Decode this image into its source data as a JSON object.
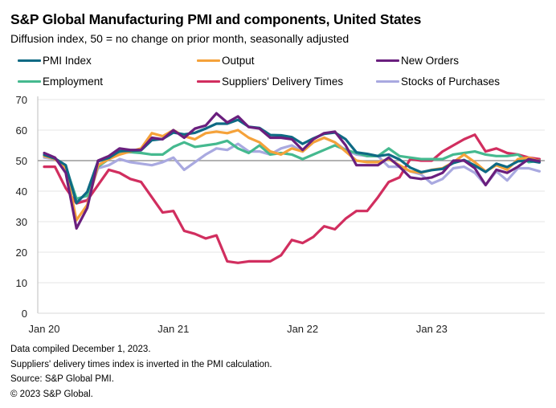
{
  "title": "S&P Global Manufacturing PMI and components, United States",
  "subtitle": "Diffusion index, 50 = no change on prior month, seasonally adjusted",
  "footer": [
    "Data compiled December 1, 2023.",
    "Suppliers' delivery times index is inverted in the PMI calculation.",
    "Source: S&P Global PMI.",
    "© 2023 S&P Global."
  ],
  "chart_data": {
    "type": "line",
    "title": "S&P Global Manufacturing PMI and components, United States",
    "subtitle": "Diffusion index, 50 = no change on prior month, seasonally adjusted",
    "xlabel": "",
    "ylabel": "",
    "ylim": [
      0,
      70
    ],
    "yticks": [
      0,
      10,
      20,
      30,
      40,
      50,
      60,
      70
    ],
    "xtick_labels": [
      {
        "label": "Jan 20",
        "index": 0
      },
      {
        "label": "Jan 21",
        "index": 12
      },
      {
        "label": "Jan 22",
        "index": 24
      },
      {
        "label": "Jan 23",
        "index": 36
      }
    ],
    "x_start": "Jan 2020",
    "x_end": "Nov 2023",
    "reference_line": 50,
    "grid": true,
    "legend_position": "top",
    "series": [
      {
        "name": "PMI Index",
        "color": "#0e6a84",
        "values": [
          51.9,
          50.7,
          48.5,
          36.1,
          39.8,
          49.8,
          50.9,
          53.1,
          53.2,
          53.4,
          56.7,
          57.1,
          59.2,
          58.6,
          59.1,
          60.5,
          62.1,
          62.1,
          63.4,
          61.1,
          60.7,
          58.4,
          58.3,
          57.7,
          55.5,
          57.3,
          58.8,
          59.2,
          57.0,
          52.7,
          52.2,
          51.5,
          52.0,
          50.4,
          47.7,
          46.2,
          46.9,
          47.3,
          49.2,
          50.2,
          48.4,
          46.3,
          49.0,
          47.9,
          49.8,
          50.0,
          49.4
        ]
      },
      {
        "name": "Output",
        "color": "#f5a23a",
        "values": [
          51.5,
          50.5,
          47.5,
          30.5,
          35.5,
          48.5,
          50.5,
          52.0,
          53.0,
          54.0,
          59.0,
          58.0,
          60.0,
          58.0,
          57.0,
          59.0,
          59.5,
          59.0,
          60.0,
          57.5,
          56.0,
          53.0,
          52.0,
          54.0,
          53.0,
          56.0,
          57.5,
          56.0,
          53.0,
          50.0,
          49.5,
          49.5,
          50.5,
          48.5,
          46.5,
          46.0,
          47.0,
          47.5,
          49.5,
          52.0,
          49.5,
          46.5,
          48.5,
          47.0,
          50.5,
          51.0,
          49.8
        ]
      },
      {
        "name": "New Orders",
        "color": "#6a1f7e",
        "values": [
          52.5,
          51.0,
          46.0,
          27.8,
          34.5,
          50.0,
          51.5,
          54.0,
          53.5,
          53.5,
          57.5,
          57.0,
          60.0,
          57.5,
          60.5,
          61.5,
          65.5,
          62.5,
          64.5,
          61.0,
          60.5,
          57.5,
          57.5,
          57.0,
          53.5,
          57.0,
          59.0,
          59.5,
          55.0,
          48.5,
          48.5,
          48.5,
          51.0,
          48.0,
          44.5,
          44.0,
          44.5,
          46.0,
          50.0,
          50.0,
          47.5,
          42.0,
          47.0,
          46.0,
          48.0,
          50.5,
          49.8
        ]
      },
      {
        "name": "Employment",
        "color": "#45b98f",
        "values": [
          51.5,
          50.8,
          48.0,
          37.5,
          38.5,
          48.0,
          50.5,
          52.5,
          52.8,
          52.5,
          52.0,
          52.0,
          54.5,
          56.0,
          54.5,
          55.0,
          55.5,
          56.5,
          54.0,
          52.5,
          55.0,
          52.0,
          52.5,
          52.0,
          50.5,
          52.0,
          53.5,
          55.0,
          53.5,
          52.5,
          51.5,
          51.5,
          54.0,
          51.5,
          51.0,
          50.5,
          50.5,
          50.5,
          52.0,
          52.5,
          53.0,
          52.0,
          51.5,
          51.5,
          52.0,
          49.5,
          50.0
        ]
      },
      {
        "name": "Suppliers' Delivery Times",
        "color": "#d12e5f",
        "values": [
          48.0,
          48.0,
          41.0,
          36.0,
          37.0,
          42.0,
          47.0,
          46.0,
          44.0,
          43.0,
          38.0,
          33.0,
          33.5,
          27.0,
          26.0,
          24.5,
          25.5,
          17.0,
          16.5,
          17.0,
          17.0,
          17.0,
          19.0,
          24.0,
          23.0,
          25.0,
          28.5,
          27.5,
          31.0,
          33.5,
          33.5,
          38.0,
          43.0,
          44.5,
          50.5,
          50.0,
          50.0,
          53.0,
          55.0,
          57.0,
          58.5,
          53.0,
          54.0,
          52.5,
          52.0,
          51.0,
          50.5
        ]
      },
      {
        "name": "Stocks of Purchases",
        "color": "#a9a9e0",
        "values": [
          51.0,
          50.5,
          48.5,
          36.5,
          37.0,
          47.5,
          48.5,
          50.5,
          49.5,
          49.0,
          48.5,
          49.5,
          51.0,
          47.0,
          49.5,
          52.0,
          54.0,
          53.5,
          55.5,
          53.0,
          53.0,
          52.0,
          54.0,
          55.0,
          53.0,
          56.0,
          57.5,
          56.0,
          53.5,
          52.0,
          51.5,
          51.5,
          48.0,
          48.0,
          46.5,
          45.5,
          42.5,
          44.0,
          47.5,
          48.0,
          46.0,
          42.0,
          46.5,
          43.5,
          47.5,
          47.5,
          46.5
        ]
      }
    ]
  }
}
